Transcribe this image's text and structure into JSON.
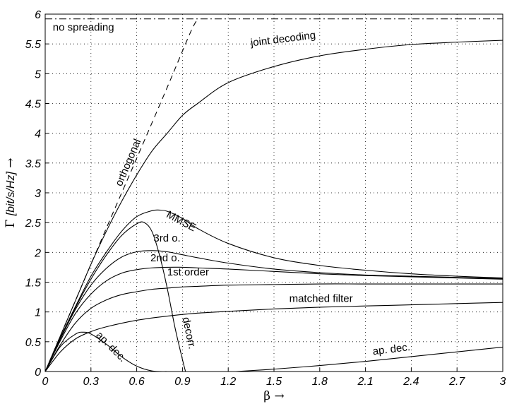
{
  "chart_data": {
    "type": "line",
    "xlabel": "β →",
    "ylabel": "Γ [bit/s/Hz] →",
    "ylabel_symbol": "Γ",
    "ylabel_unit": "[bit/s/Hz]",
    "ylabel_arrow": "→",
    "xlim": [
      0,
      3
    ],
    "ylim": [
      0,
      6
    ],
    "grid": true,
    "x_ticks": [
      "0",
      "0.3",
      "0.6",
      "0.9",
      "1.2",
      "1.5",
      "1.8",
      "2.1",
      "2.4",
      "2.7",
      "3"
    ],
    "y_ticks": [
      "0",
      "0.5",
      "1",
      "1.5",
      "2",
      "2.5",
      "3",
      "3.5",
      "4",
      "4.5",
      "5",
      "5.5",
      "6"
    ],
    "series": [
      {
        "name": "no spreading",
        "style": "dashdot",
        "x": [
          0,
          3
        ],
        "y": [
          5.92,
          5.92
        ]
      },
      {
        "name": "orthogonal",
        "style": "dashed",
        "x": [
          0,
          0.2,
          0.4,
          0.6,
          0.8,
          0.95,
          1.0
        ],
        "y": [
          0,
          1.2,
          2.4,
          3.58,
          4.77,
          5.68,
          5.92
        ]
      },
      {
        "name": "joint decoding",
        "style": "solid",
        "x": [
          0,
          0.1,
          0.2,
          0.3,
          0.4,
          0.5,
          0.6,
          0.7,
          0.8,
          0.9,
          1.0,
          1.2,
          1.5,
          1.8,
          2.1,
          2.4,
          2.7,
          3.0
        ],
        "y": [
          0,
          0.6,
          1.2,
          1.8,
          2.35,
          2.85,
          3.3,
          3.7,
          4.0,
          4.3,
          4.5,
          4.85,
          5.12,
          5.3,
          5.41,
          5.49,
          5.53,
          5.56
        ]
      },
      {
        "name": "MMSE",
        "style": "solid",
        "x": [
          0,
          0.1,
          0.2,
          0.3,
          0.4,
          0.5,
          0.6,
          0.7,
          0.75,
          0.8,
          0.9,
          1.0,
          1.2,
          1.5,
          1.8,
          2.1,
          2.4,
          2.7,
          3.0
        ],
        "y": [
          0,
          0.57,
          1.1,
          1.6,
          2.0,
          2.35,
          2.6,
          2.7,
          2.71,
          2.69,
          2.57,
          2.4,
          2.15,
          1.91,
          1.78,
          1.7,
          1.64,
          1.6,
          1.57
        ]
      },
      {
        "name": "decorr.",
        "style": "solid",
        "x": [
          0,
          0.1,
          0.2,
          0.3,
          0.4,
          0.5,
          0.6,
          0.65,
          0.7,
          0.75,
          0.8,
          0.85,
          0.9,
          0.92
        ],
        "y": [
          0,
          0.56,
          1.08,
          1.55,
          1.95,
          2.28,
          2.48,
          2.5,
          2.35,
          1.95,
          1.4,
          0.75,
          0.2,
          0
        ]
      },
      {
        "name": "3rd o.",
        "style": "solid",
        "x": [
          0,
          0.1,
          0.2,
          0.3,
          0.4,
          0.5,
          0.6,
          0.7,
          0.8,
          0.9,
          1.0,
          1.2,
          1.5,
          1.8,
          2.1,
          2.4,
          2.7,
          3.0
        ],
        "y": [
          0,
          0.55,
          1.05,
          1.45,
          1.73,
          1.92,
          2.01,
          2.03,
          2.01,
          1.96,
          1.91,
          1.82,
          1.72,
          1.66,
          1.62,
          1.6,
          1.58,
          1.56
        ]
      },
      {
        "name": "2nd o.",
        "style": "solid",
        "x": [
          0,
          0.1,
          0.2,
          0.3,
          0.4,
          0.5,
          0.6,
          0.7,
          0.8,
          0.9,
          1.0,
          1.2,
          1.5,
          1.8,
          2.1,
          2.4,
          2.7,
          3.0
        ],
        "y": [
          0,
          0.52,
          0.98,
          1.3,
          1.52,
          1.65,
          1.71,
          1.74,
          1.75,
          1.75,
          1.74,
          1.72,
          1.68,
          1.64,
          1.61,
          1.59,
          1.57,
          1.55
        ]
      },
      {
        "name": "1st order",
        "style": "solid",
        "x": [
          0,
          0.1,
          0.2,
          0.3,
          0.4,
          0.5,
          0.6,
          0.7,
          0.8,
          0.9,
          1.0,
          1.2,
          1.5,
          1.8,
          2.1,
          2.4,
          2.7,
          3.0
        ],
        "y": [
          0,
          0.45,
          0.82,
          1.06,
          1.2,
          1.29,
          1.34,
          1.38,
          1.4,
          1.42,
          1.43,
          1.45,
          1.46,
          1.47,
          1.47,
          1.47,
          1.47,
          1.47
        ]
      },
      {
        "name": "matched filter",
        "style": "solid",
        "x": [
          0,
          0.1,
          0.2,
          0.3,
          0.4,
          0.6,
          0.8,
          1.0,
          1.2,
          1.5,
          1.8,
          2.1,
          2.4,
          2.7,
          3.0
        ],
        "y": [
          0,
          0.33,
          0.55,
          0.67,
          0.75,
          0.86,
          0.93,
          0.98,
          1.01,
          1.05,
          1.08,
          1.1,
          1.12,
          1.14,
          1.16
        ]
      },
      {
        "name": "ap. dec.",
        "style": "solid",
        "x": [
          0,
          0.1,
          0.2,
          0.25,
          0.3,
          0.4,
          0.5,
          0.6,
          0.7,
          0.8
        ],
        "y": [
          0,
          0.42,
          0.63,
          0.66,
          0.63,
          0.46,
          0.25,
          0.09,
          0.01,
          0
        ]
      },
      {
        "name": "ap. dec.",
        "style": "solid",
        "x": [
          1.25,
          1.5,
          1.8,
          2.1,
          2.4,
          2.7,
          3.0
        ],
        "y": [
          0,
          0.04,
          0.1,
          0.17,
          0.25,
          0.33,
          0.41
        ]
      }
    ],
    "labels": [
      {
        "text": "no spreading",
        "x": 0.05,
        "y": 5.72,
        "rot": 0
      },
      {
        "text": "joint decoding",
        "x": 1.35,
        "y": 5.46,
        "rot": -7
      },
      {
        "text": "orthogonal",
        "x": 0.5,
        "y": 3.1,
        "rot": -67
      },
      {
        "text": "MMSE",
        "x": 0.79,
        "y": 2.6,
        "rot": 28
      },
      {
        "text": "3rd o.",
        "x": 0.71,
        "y": 2.18,
        "rot": 0
      },
      {
        "text": "2nd o.",
        "x": 0.69,
        "y": 1.85,
        "rot": 0
      },
      {
        "text": "1st order",
        "x": 0.8,
        "y": 1.61,
        "rot": 0
      },
      {
        "text": "matched filter",
        "x": 1.6,
        "y": 1.17,
        "rot": 0
      },
      {
        "text": "ap. dec.",
        "x": 0.33,
        "y": 0.6,
        "rot": 45
      },
      {
        "text": "decorr.",
        "x": 0.9,
        "y": 0.9,
        "rot": 78
      },
      {
        "text": "ap. dec.",
        "x": 2.15,
        "y": 0.28,
        "rot": -7
      }
    ]
  }
}
